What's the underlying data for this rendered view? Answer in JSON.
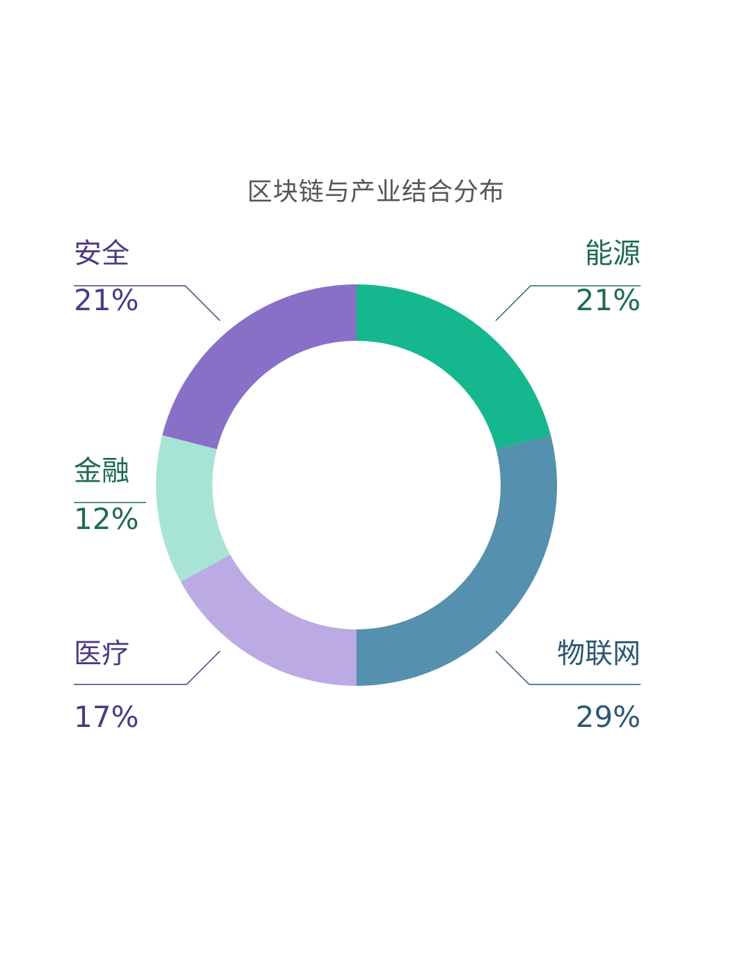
{
  "chart_data": {
    "type": "pie",
    "title": "区块链与产业结合分布",
    "categories": [
      "能源",
      "物联网",
      "医疗",
      "金融",
      "安全"
    ],
    "values": [
      21,
      29,
      17,
      12,
      21
    ],
    "unit": "%",
    "value_labels": [
      "21%",
      "29%",
      "17%",
      "12%",
      "21%"
    ],
    "colors": [
      "#15b78f",
      "#5590ae",
      "#bcaae5",
      "#a8e4d6",
      "#8970c7"
    ],
    "label_colors": [
      "#1f6a55",
      "#2c5872",
      "#4d3a82",
      "#1f6a55",
      "#4d3a82"
    ],
    "start_angle": 0,
    "direction": "clockwise",
    "style": "donut"
  }
}
